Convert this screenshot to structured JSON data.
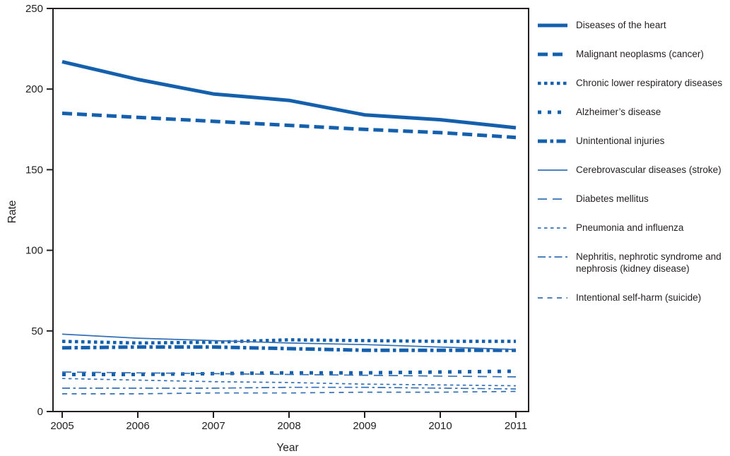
{
  "chart_data": {
    "type": "line",
    "title": "",
    "xlabel": "Year",
    "ylabel": "Rate",
    "x": [
      2005,
      2006,
      2007,
      2008,
      2009,
      2010,
      2011
    ],
    "x_tick_labels": [
      "2005",
      "2006",
      "2007",
      "2008",
      "2009",
      "2010",
      "2011"
    ],
    "ylim": [
      0,
      250
    ],
    "y_ticks": [
      0,
      50,
      100,
      150,
      200,
      250
    ],
    "y_tick_labels": [
      "0",
      "50",
      "100",
      "150",
      "200",
      "250"
    ],
    "grid": false,
    "legend_position": "right-outside",
    "axis_color": "#231F20",
    "accent_color_thick": "#1560AC",
    "accent_color_thin": "#3470B5",
    "series": [
      {
        "id": "heart",
        "name": "Diseases of the heart",
        "line_style": "thick-solid",
        "color": "#1560AC",
        "values": [
          217,
          206,
          197,
          193,
          184,
          181,
          176
        ]
      },
      {
        "id": "cancer",
        "name": "Malignant neoplasms (cancer)",
        "line_style": "thick-dash",
        "color": "#1560AC",
        "values": [
          185,
          182.5,
          180,
          177.5,
          175,
          173,
          170
        ]
      },
      {
        "id": "clrd",
        "name": "Chronic lower respiratory diseases",
        "line_style": "thick-dot",
        "color": "#1560AC",
        "values": [
          43.5,
          42.5,
          43,
          44.5,
          44,
          43.5,
          43.5
        ]
      },
      {
        "id": "alzheimers",
        "name": "Alzheimer’s disease",
        "line_style": "thick-squaredot",
        "color": "#1560AC",
        "values": [
          23,
          23,
          23.5,
          24,
          24,
          24.5,
          25
        ]
      },
      {
        "id": "unintentional-injuries",
        "name": "Unintentional injuries",
        "line_style": "thick-dashdot",
        "color": "#1560AC",
        "values": [
          39.5,
          40,
          40,
          39,
          38,
          38,
          38
        ]
      },
      {
        "id": "stroke",
        "name": "Cerebrovascular diseases (stroke)",
        "line_style": "thin-solid",
        "color": "#3470B5",
        "values": [
          48,
          45.5,
          44,
          42.5,
          41.5,
          40,
          38.5
        ]
      },
      {
        "id": "diabetes",
        "name": "Diabetes mellitus",
        "line_style": "thin-longdash",
        "color": "#3470B5",
        "values": [
          24.5,
          24,
          23.5,
          23,
          22.5,
          22,
          21.5
        ]
      },
      {
        "id": "pneumonia-influenza",
        "name": "Pneumonia and influenza",
        "line_style": "thin-shortdash",
        "color": "#3470B5",
        "values": [
          20.5,
          19.5,
          18.5,
          18,
          17,
          16.5,
          16
        ]
      },
      {
        "id": "nephritis",
        "name": "Nephritis, nephrotic syndrome and nephrosis (kidney disease)",
        "line_style": "thin-dashdot",
        "color": "#3470B5",
        "values": [
          14.5,
          14.5,
          14.5,
          15,
          15,
          14.5,
          14
        ]
      },
      {
        "id": "suicide",
        "name": "Intentional self-harm (suicide)",
        "line_style": "thin-dash",
        "color": "#3470B5",
        "values": [
          11,
          11,
          11.5,
          11.5,
          12,
          12,
          12.5
        ]
      }
    ]
  }
}
